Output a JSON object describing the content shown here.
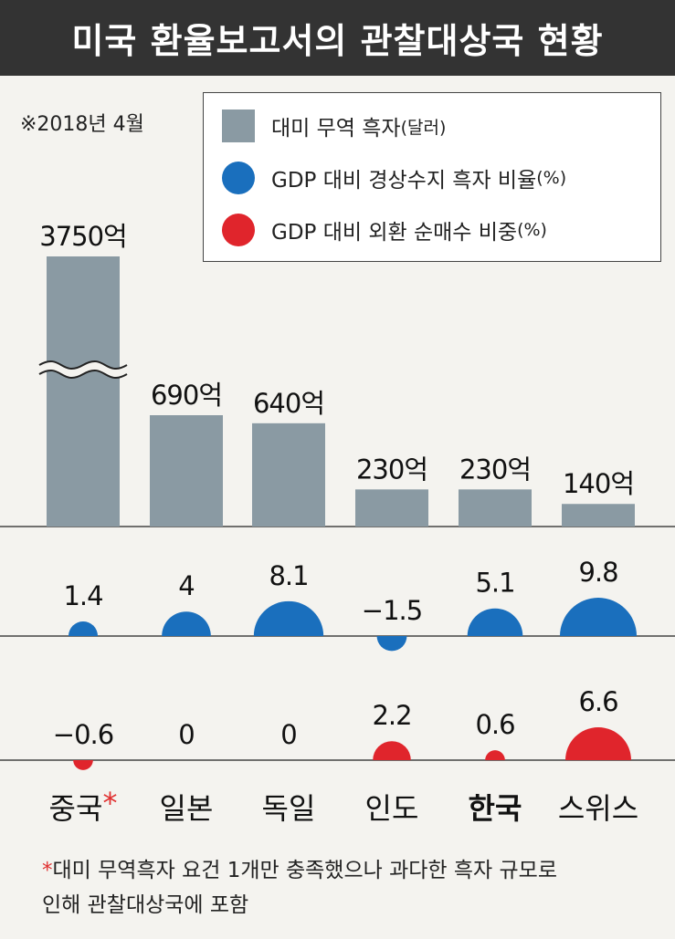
{
  "title": "미국 환율보고서의 관찰대상국 현황",
  "date_note": "※2018년 4월",
  "legend": [
    {
      "main": "대미 무역 흑자",
      "suffix": "(달러)",
      "color": "#8a9aa3",
      "shape": "rect"
    },
    {
      "main": "GDP 대비 경상수지 흑자 비율",
      "suffix": "(%)",
      "color": "#1a6fbd",
      "shape": "circle"
    },
    {
      "main": "GDP 대비 외환 순매수 비중",
      "suffix": "(%)",
      "color": "#e0252c",
      "shape": "circle"
    }
  ],
  "chart_data": {
    "type": "bar",
    "categories": [
      "중국",
      "일본",
      "독일",
      "인도",
      "한국",
      "스위스"
    ],
    "category_marks": [
      "*",
      "",
      "",
      "",
      "",
      ""
    ],
    "highlight_category": "한국",
    "series": [
      {
        "name": "대미 무역 흑자(달러)",
        "values": [
          3750,
          690,
          640,
          230,
          230,
          140
        ],
        "labels": [
          "3750억",
          "690억",
          "640억",
          "230억",
          "230억",
          "140억"
        ],
        "broken_axis_index": 0,
        "color": "#8a9aa3"
      },
      {
        "name": "GDP 대비 경상수지 흑자 비율(%)",
        "values": [
          1.4,
          4,
          8.1,
          -1.5,
          5.1,
          9.8
        ],
        "labels": [
          "1.4",
          "4",
          "8.1",
          "−1.5",
          "5.1",
          "9.8"
        ],
        "color": "#1a6fbd"
      },
      {
        "name": "GDP 대비 외환 순매수 비중(%)",
        "values": [
          -0.6,
          0,
          0,
          2.2,
          0.6,
          6.6
        ],
        "labels": [
          "−0.6",
          "0",
          "0",
          "2.2",
          "0.6",
          "6.6"
        ],
        "color": "#e0252c"
      }
    ]
  },
  "footnote": {
    "star": "*",
    "text": "대미 무역흑자 요건 1개만 충족했으나 과다한 흑자 규모로",
    "text2": "인해 관찰대상국에 포함"
  }
}
